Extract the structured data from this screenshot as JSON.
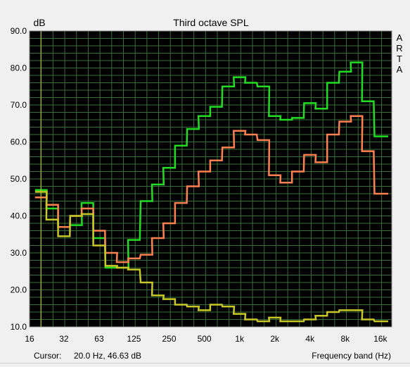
{
  "chart_data": {
    "type": "line",
    "style": "step",
    "title": "Third octave SPL",
    "ylabel": "dB",
    "xlabel": "Frequency band (Hz)",
    "brand": "ARTA",
    "cursor_label": "Cursor:",
    "cursor_value": "20.0 Hz, 46.63 dB",
    "ylim": [
      10,
      90
    ],
    "xlim_hz": [
      16,
      20000
    ],
    "x_scale": "log",
    "grid": true,
    "y_ticks": [
      "10.0",
      "20.0",
      "30.0",
      "40.0",
      "50.0",
      "60.0",
      "70.0",
      "80.0",
      "90.0"
    ],
    "x_ticks": [
      {
        "label": "16",
        "hz": 16
      },
      {
        "label": "32",
        "hz": 31.5
      },
      {
        "label": "63",
        "hz": 63
      },
      {
        "label": "125",
        "hz": 125
      },
      {
        "label": "250",
        "hz": 250
      },
      {
        "label": "500",
        "hz": 500
      },
      {
        "label": "1k",
        "hz": 1000
      },
      {
        "label": "2k",
        "hz": 2000
      },
      {
        "label": "4k",
        "hz": 4000
      },
      {
        "label": "8k",
        "hz": 8000
      },
      {
        "label": "16k",
        "hz": 16000
      }
    ],
    "bands_hz": [
      20,
      25,
      31.5,
      40,
      50,
      63,
      80,
      100,
      125,
      160,
      200,
      250,
      315,
      400,
      500,
      630,
      800,
      1000,
      1250,
      1600,
      2000,
      2500,
      3150,
      4000,
      5000,
      6300,
      8000,
      10000,
      12500,
      16000
    ],
    "series": [
      {
        "color": "#22dd22",
        "values": [
          47,
          42,
          37,
          37.5,
          43.5,
          34,
          26,
          26,
          33.5,
          44,
          48.5,
          53,
          59,
          63.5,
          67,
          69.5,
          75,
          77.5,
          76,
          75,
          67,
          66,
          66.5,
          70.5,
          69,
          76,
          79,
          81.5,
          71,
          61.5
        ]
      },
      {
        "color": "#ff8050",
        "values": [
          45,
          43,
          37,
          40,
          42,
          36,
          30,
          27.5,
          28.5,
          29.5,
          34,
          38,
          43.5,
          48,
          52,
          55,
          58.5,
          63,
          62,
          60.5,
          51,
          49,
          52,
          56.5,
          54.5,
          62,
          65.5,
          67,
          57.5,
          46
        ]
      },
      {
        "color": "#c8c828",
        "values": [
          46.5,
          39,
          34.5,
          40,
          40.5,
          32,
          26.5,
          26,
          25.5,
          22,
          18.5,
          17.5,
          16,
          15.5,
          14.5,
          16,
          15.5,
          13.5,
          12,
          11.5,
          12.5,
          11.5,
          11.5,
          12,
          13,
          14,
          14.5,
          14.5,
          12,
          11.5
        ]
      }
    ],
    "background_color": "#000000",
    "grid_color": "#3a6e3a",
    "cursor_color": "#c8c828"
  }
}
